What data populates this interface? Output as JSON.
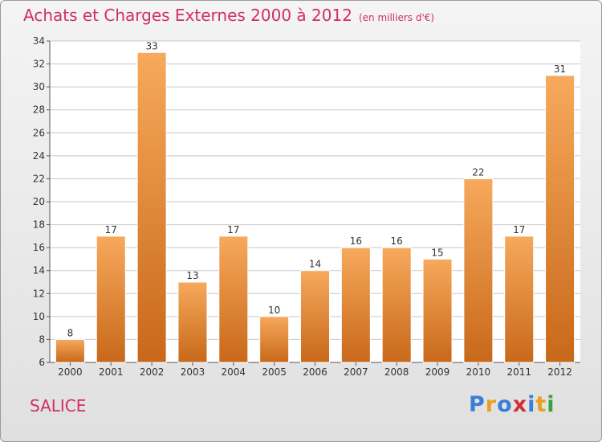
{
  "title": "Achats et Charges Externes 2000 à 2012",
  "unit_note": "(en milliers d'€)",
  "region_name": "SALICE",
  "logo": {
    "letters": [
      "P",
      "r",
      "o",
      "x",
      "i",
      "t",
      "i"
    ],
    "colors": [
      "#3a7fd5",
      "#e8a020",
      "#3a7fd5",
      "#d03030",
      "#3a7fd5",
      "#e8a020",
      "#3aa040"
    ]
  },
  "colors": {
    "title": "#d03060",
    "bar_light": "#f7a95c",
    "bar_dark": "#c8681a",
    "grid": "#c8c8c8"
  },
  "chart_data": {
    "type": "bar",
    "title": "Achats et Charges Externes 2000 à 2012",
    "subtitle": "(en milliers d'€)",
    "categories": [
      "2000",
      "2001",
      "2002",
      "2003",
      "2004",
      "2005",
      "2006",
      "2007",
      "2008",
      "2009",
      "2010",
      "2011",
      "2012"
    ],
    "values": [
      8,
      17,
      33,
      13,
      17,
      10,
      14,
      16,
      16,
      15,
      22,
      17,
      31
    ],
    "xlabel": "",
    "ylabel": "",
    "ylim": [
      6,
      34
    ],
    "yticks": [
      "6",
      "8",
      "10",
      "12",
      "14",
      "16",
      "18",
      "20",
      "22",
      "24",
      "26",
      "28",
      "30",
      "32",
      "34"
    ],
    "grid": true,
    "legend": "none"
  }
}
